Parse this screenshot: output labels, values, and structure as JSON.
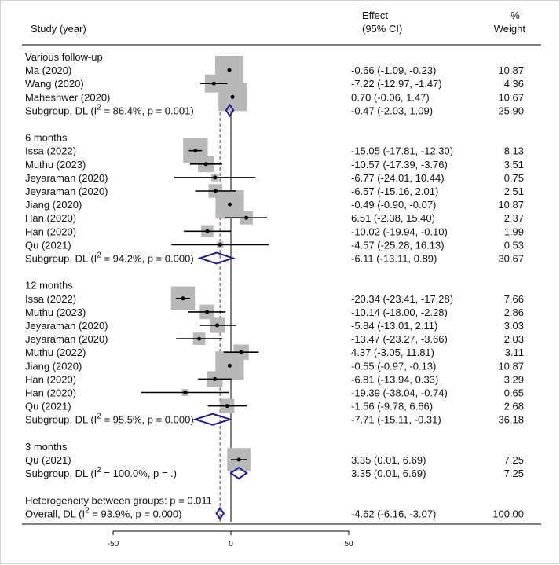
{
  "chart_data": {
    "type": "forest",
    "headers": {
      "study": "Study (year)",
      "effect_line1": "Effect",
      "effect_line2": "(95% CI)",
      "weight_line1": "%",
      "weight_line2": "Weight"
    },
    "x_axis": {
      "ticks": [
        -50,
        0,
        50
      ],
      "range": [
        -50,
        50
      ],
      "null_line": 0
    },
    "overall_reference": -4.62,
    "groups": [
      {
        "title": "Various follow-up",
        "studies": [
          {
            "label": "Ma (2020)",
            "effect": -0.66,
            "lower": -1.09,
            "upper": -0.23,
            "weight": 10.87,
            "ci_text": "-0.66 (-1.09, -0.23)",
            "weight_text": "10.87"
          },
          {
            "label": "Wang (2020)",
            "effect": -7.22,
            "lower": -12.97,
            "upper": -1.47,
            "weight": 4.36,
            "ci_text": "-7.22 (-12.97, -1.47)",
            "weight_text": "4.36"
          },
          {
            "label": "Maheshwer (2020)",
            "effect": 0.7,
            "lower": -0.06,
            "upper": 1.47,
            "weight": 10.67,
            "ci_text": "0.70 (-0.06, 1.47)",
            "weight_text": "10.67"
          }
        ],
        "subgroup": {
          "label_prefix": "Subgroup, DL (I",
          "label_sup": "2",
          "label_suffix": " = 86.4%, p = 0.001)",
          "effect": -0.47,
          "lower": -2.03,
          "upper": 1.09,
          "ci_text": "-0.47 (-2.03, 1.09)",
          "weight_text": "25.90"
        }
      },
      {
        "title": "6 months",
        "studies": [
          {
            "label": "Issa (2022)",
            "effect": -15.05,
            "lower": -17.81,
            "upper": -12.3,
            "weight": 8.13,
            "ci_text": "-15.05 (-17.81, -12.30)",
            "weight_text": "8.13"
          },
          {
            "label": "Muthu (2023)",
            "effect": -10.57,
            "lower": -17.39,
            "upper": -3.76,
            "weight": 3.51,
            "ci_text": "-10.57 (-17.39, -3.76)",
            "weight_text": "3.51"
          },
          {
            "label": "Jeyaraman (2020)",
            "effect": -6.77,
            "lower": -24.01,
            "upper": 10.44,
            "weight": 0.75,
            "ci_text": "-6.77 (-24.01, 10.44)",
            "weight_text": "0.75"
          },
          {
            "label": "Jeyaraman (2020)",
            "effect": -6.57,
            "lower": -15.16,
            "upper": 2.01,
            "weight": 2.51,
            "ci_text": "-6.57 (-15.16, 2.01)",
            "weight_text": "2.51"
          },
          {
            "label": "Jiang (2020)",
            "effect": -0.49,
            "lower": -0.9,
            "upper": -0.07,
            "weight": 10.87,
            "ci_text": "-0.49 (-0.90, -0.07)",
            "weight_text": "10.87"
          },
          {
            "label": "Han (2020)",
            "effect": 6.51,
            "lower": -2.38,
            "upper": 15.4,
            "weight": 2.37,
            "ci_text": "6.51 (-2.38, 15.40)",
            "weight_text": "2.37"
          },
          {
            "label": "Han (2020)",
            "effect": -10.02,
            "lower": -19.94,
            "upper": -0.1,
            "weight": 1.99,
            "ci_text": "-10.02 (-19.94, -0.10)",
            "weight_text": "1.99"
          },
          {
            "label": "Qu (2021)",
            "effect": -4.57,
            "lower": -25.28,
            "upper": 16.13,
            "weight": 0.53,
            "ci_text": "-4.57 (-25.28, 16.13)",
            "weight_text": "0.53"
          }
        ],
        "subgroup": {
          "label_prefix": "Subgroup, DL (I",
          "label_sup": "2",
          "label_suffix": " = 94.2%, p = 0.000)",
          "effect": -6.11,
          "lower": -13.11,
          "upper": 0.89,
          "ci_text": "-6.11 (-13.11, 0.89)",
          "weight_text": "30.67"
        }
      },
      {
        "title": "12 months",
        "studies": [
          {
            "label": "Issa (2022)",
            "effect": -20.34,
            "lower": -23.41,
            "upper": -17.28,
            "weight": 7.66,
            "ci_text": "-20.34 (-23.41, -17.28)",
            "weight_text": "7.66"
          },
          {
            "label": "Muthu (2023)",
            "effect": -10.14,
            "lower": -18.0,
            "upper": -2.28,
            "weight": 2.86,
            "ci_text": "-10.14 (-18.00, -2.28)",
            "weight_text": "2.86"
          },
          {
            "label": "Jeyaraman (2020)",
            "effect": -5.84,
            "lower": -13.01,
            "upper": 2.11,
            "weight": 3.03,
            "ci_text": "-5.84 (-13.01, 2.11)",
            "weight_text": "3.03"
          },
          {
            "label": "Jeyaraman (2020)",
            "effect": -13.47,
            "lower": -23.27,
            "upper": -3.66,
            "weight": 2.03,
            "ci_text": "-13.47 (-23.27, -3.66)",
            "weight_text": "2.03"
          },
          {
            "label": "Muthu (2022)",
            "effect": 4.37,
            "lower": -3.05,
            "upper": 11.81,
            "weight": 3.11,
            "ci_text": "4.37 (-3.05, 11.81)",
            "weight_text": "3.11"
          },
          {
            "label": "Jiang (2020)",
            "effect": -0.55,
            "lower": -0.97,
            "upper": -0.13,
            "weight": 10.87,
            "ci_text": "-0.55 (-0.97, -0.13)",
            "weight_text": "10.87"
          },
          {
            "label": "Han (2020)",
            "effect": -6.81,
            "lower": -13.94,
            "upper": 0.33,
            "weight": 3.29,
            "ci_text": "-6.81 (-13.94, 0.33)",
            "weight_text": "3.29"
          },
          {
            "label": "Han (2020)",
            "effect": -19.39,
            "lower": -38.04,
            "upper": -0.74,
            "weight": 0.65,
            "ci_text": "-19.39 (-38.04, -0.74)",
            "weight_text": "0.65"
          },
          {
            "label": "Qu (2021)",
            "effect": -1.56,
            "lower": -9.78,
            "upper": 6.66,
            "weight": 2.68,
            "ci_text": "-1.56 (-9.78, 6.66)",
            "weight_text": "2.68"
          }
        ],
        "subgroup": {
          "label_prefix": "Subgroup, DL (I",
          "label_sup": "2",
          "label_suffix": " = 95.5%, p = 0.000)",
          "effect": -7.71,
          "lower": -15.11,
          "upper": -0.31,
          "ci_text": "-7.71 (-15.11, -0.31)",
          "weight_text": "36.18"
        }
      },
      {
        "title": "3 months",
        "studies": [
          {
            "label": "Qu (2021)",
            "effect": 3.35,
            "lower": 0.01,
            "upper": 6.69,
            "weight": 7.25,
            "ci_text": "3.35 (0.01, 6.69)",
            "weight_text": "7.25"
          }
        ],
        "subgroup": {
          "label_prefix": "Subgroup, DL (I",
          "label_sup": "2",
          "label_suffix": " = 100.0%, p = .)",
          "effect": 3.35,
          "lower": 0.01,
          "upper": 6.69,
          "ci_text": "3.35 (0.01, 6.69)",
          "weight_text": "7.25"
        }
      }
    ],
    "heterogeneity_text": "Heterogeneity between groups: p = 0.011",
    "overall": {
      "label_prefix": "Overall, DL (I",
      "label_sup": "2",
      "label_suffix": " = 93.9%, p = 0.000)",
      "effect": -4.62,
      "lower": -6.16,
      "upper": -3.07,
      "ci_text": "-4.62 (-6.16, -3.07)",
      "weight_text": "100.00"
    },
    "colors": {
      "box": "#b8b8b8",
      "diamond": "#1f1f8f",
      "ci_line": "#000000",
      "null_line": "#000000",
      "overall_line": "#9e1b32"
    }
  }
}
